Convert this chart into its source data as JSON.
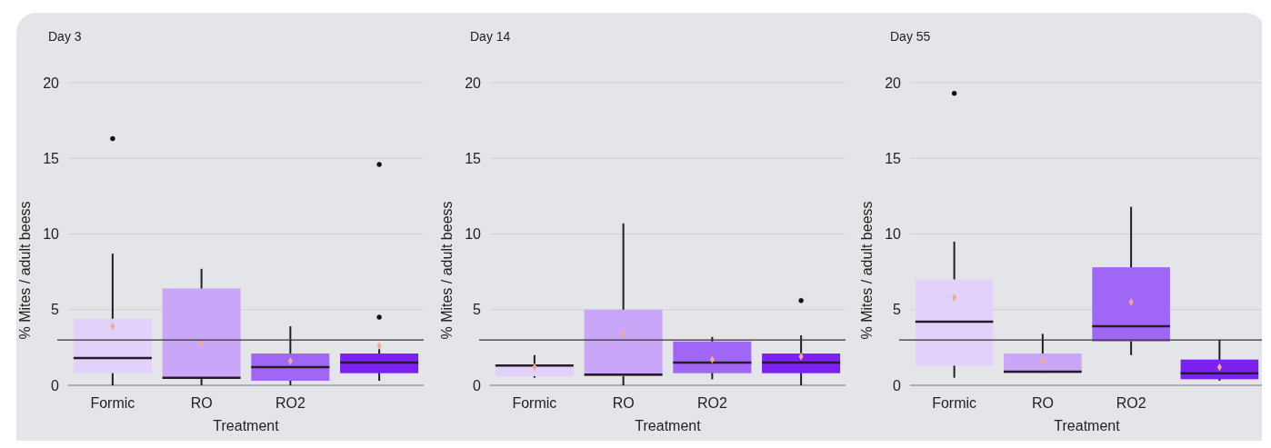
{
  "chart_data": [
    {
      "type": "box",
      "title": "Day 3",
      "xlabel": "Treatment",
      "ylabel": "% Mites / adult beess",
      "categories": [
        "Formic",
        "RO",
        "RO2",
        null
      ],
      "colors": [
        "#e2d1fb",
        "#c9a6f8",
        "#a066f5",
        "#7b22f0"
      ],
      "ylim": [
        0,
        20
      ],
      "yticks": [
        0,
        5,
        10,
        15,
        20
      ],
      "grid": "y",
      "ref_lines": [
        {
          "axis": "y",
          "value": 3,
          "color": "#333333"
        }
      ],
      "boxes": [
        {
          "low": 0,
          "q1": 0.8,
          "median": 1.8,
          "q3": 4.4,
          "high": 8.7,
          "mean": 3.9,
          "outliers": [
            16.3
          ]
        },
        {
          "low": 0,
          "q1": 0.5,
          "median": 0.5,
          "q3": 6.4,
          "high": 7.7,
          "mean": 2.8
        },
        {
          "low": 0,
          "q1": 0.3,
          "median": 1.2,
          "q3": 2.1,
          "high": 3.9,
          "mean": 1.6
        },
        {
          "low": 0.3,
          "q1": 0.8,
          "median": 1.5,
          "q3": 2.1,
          "high": 2.4,
          "mean": 2.6,
          "outliers": [
            14.6,
            4.5
          ]
        }
      ]
    },
    {
      "type": "box",
      "title": "Day 14",
      "xlabel": "Treatment",
      "ylabel": "% Mites / adult beess",
      "categories": [
        "Formic",
        "RO",
        "RO2",
        null
      ],
      "colors": [
        "#e2d1fb",
        "#c9a6f8",
        "#a066f5",
        "#7b22f0"
      ],
      "ylim": [
        0,
        20
      ],
      "yticks": [
        0,
        5,
        10,
        15,
        20
      ],
      "grid": "y",
      "ref_lines": [
        {
          "axis": "y",
          "value": 3,
          "color": "#333333"
        }
      ],
      "boxes": [
        {
          "low": 0.5,
          "q1": 0.6,
          "median": 1.3,
          "q3": 1.4,
          "high": 2.0,
          "mean": 1.2
        },
        {
          "low": 0,
          "q1": 0.6,
          "median": 0.7,
          "q3": 5.0,
          "high": 10.7,
          "mean": 3.4
        },
        {
          "low": 0.4,
          "q1": 0.8,
          "median": 1.5,
          "q3": 2.9,
          "high": 3.2,
          "mean": 1.7
        },
        {
          "low": 0,
          "q1": 0.8,
          "median": 1.5,
          "q3": 2.1,
          "high": 3.3,
          "mean": 1.9,
          "outliers": [
            5.6
          ]
        }
      ]
    },
    {
      "type": "box",
      "title": "Day 55",
      "xlabel": "Treatment",
      "ylabel": "% Mites / adult beess",
      "categories": [
        "Formic",
        "RO",
        "RO2",
        null
      ],
      "colors": [
        "#e2d1fb",
        "#c9a6f8",
        "#a066f5",
        "#7b22f0"
      ],
      "ylim": [
        0,
        20
      ],
      "yticks": [
        0,
        5,
        10,
        15,
        20
      ],
      "grid": "y",
      "ref_lines": [
        {
          "axis": "y",
          "value": 3,
          "color": "#333333"
        }
      ],
      "boxes": [
        {
          "low": 0.5,
          "q1": 1.3,
          "median": 4.2,
          "q3": 7.0,
          "high": 9.5,
          "mean": 5.8,
          "outliers": [
            19.3
          ]
        },
        {
          "low": 0.8,
          "q1": 0.8,
          "median": 0.9,
          "q3": 2.1,
          "high": 3.4,
          "mean": 1.6
        },
        {
          "low": 2.0,
          "q1": 2.9,
          "median": 3.9,
          "q3": 7.8,
          "high": 11.8,
          "mean": 5.5
        },
        {
          "low": 0.3,
          "q1": 0.4,
          "median": 0.8,
          "q3": 1.7,
          "high": 3.0,
          "mean": 1.2
        }
      ]
    }
  ]
}
